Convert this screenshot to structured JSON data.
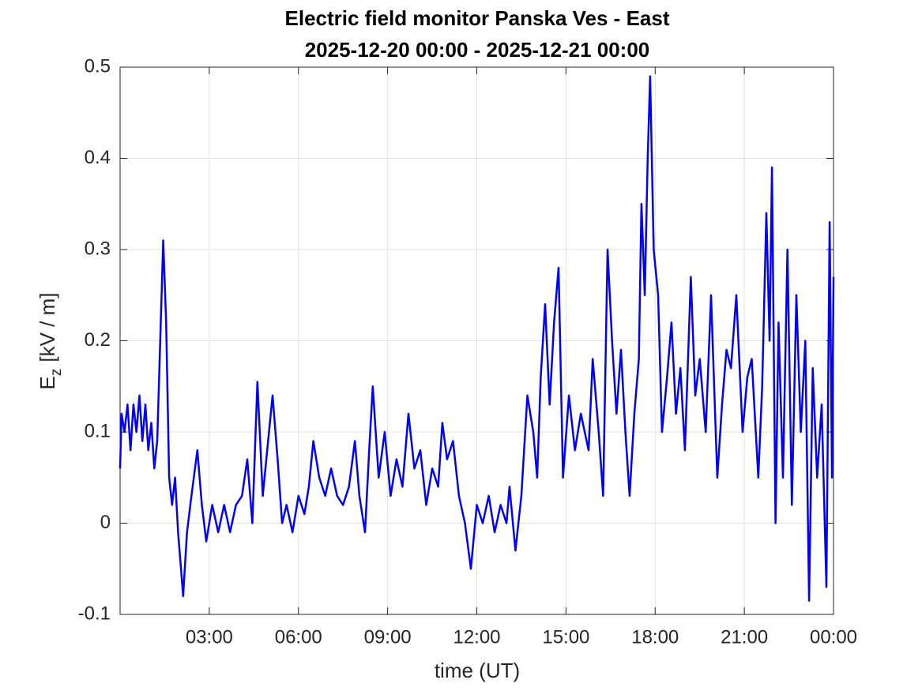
{
  "chart_data": {
    "type": "line",
    "title": "Electric field monitor Panska Ves - East",
    "subtitle": "2025-12-20 00:00 - 2025-12-21 00:00",
    "xlabel": "time (UT)",
    "ylabel_symbol": "E",
    "ylabel_subscript": "z",
    "ylabel_unit": "[kV / m]",
    "xlim": [
      0,
      24
    ],
    "ylim": [
      -0.1,
      0.5
    ],
    "xticks": [
      {
        "value": 3,
        "label": "03:00"
      },
      {
        "value": 6,
        "label": "06:00"
      },
      {
        "value": 9,
        "label": "09:00"
      },
      {
        "value": 12,
        "label": "12:00"
      },
      {
        "value": 15,
        "label": "15:00"
      },
      {
        "value": 18,
        "label": "18:00"
      },
      {
        "value": 21,
        "label": "21:00"
      },
      {
        "value": 24,
        "label": "00:00"
      }
    ],
    "yticks": [
      -0.1,
      0,
      0.1,
      0.2,
      0.3,
      0.4,
      0.5
    ],
    "grid": true,
    "series": [
      {
        "name": "Ez",
        "color": "#0000ff",
        "x": [
          0,
          0.05,
          0.15,
          0.25,
          0.35,
          0.45,
          0.55,
          0.65,
          0.75,
          0.85,
          0.95,
          1.05,
          1.15,
          1.25,
          1.35,
          1.45,
          1.55,
          1.65,
          1.75,
          1.85,
          1.95,
          2.05,
          2.12,
          2.25,
          2.4,
          2.6,
          2.75,
          2.9,
          3.1,
          3.3,
          3.5,
          3.7,
          3.9,
          4.1,
          4.28,
          4.45,
          4.62,
          4.8,
          4.95,
          5.13,
          5.3,
          5.45,
          5.6,
          5.8,
          6.0,
          6.2,
          6.35,
          6.5,
          6.7,
          6.9,
          7.1,
          7.3,
          7.5,
          7.7,
          7.9,
          8.05,
          8.24,
          8.38,
          8.5,
          8.7,
          8.9,
          9.1,
          9.3,
          9.5,
          9.7,
          9.9,
          10.1,
          10.3,
          10.5,
          10.7,
          10.84,
          11.0,
          11.2,
          11.4,
          11.6,
          11.8,
          12.0,
          12.2,
          12.4,
          12.6,
          12.8,
          13.0,
          13.1,
          13.3,
          13.5,
          13.7,
          13.9,
          14.03,
          14.15,
          14.3,
          14.45,
          14.6,
          14.75,
          14.9,
          15.1,
          15.3,
          15.5,
          15.76,
          15.9,
          16.1,
          16.25,
          16.4,
          16.55,
          16.7,
          16.85,
          17.0,
          17.14,
          17.3,
          17.45,
          17.54,
          17.65,
          17.75,
          17.83,
          17.95,
          18.1,
          18.23,
          18.4,
          18.55,
          18.7,
          18.85,
          19.0,
          19.2,
          19.35,
          19.5,
          19.7,
          19.88,
          20.09,
          20.25,
          20.4,
          20.55,
          20.73,
          20.94,
          21.1,
          21.25,
          21.47,
          21.6,
          21.74,
          21.85,
          21.93,
          22.05,
          22.15,
          22.3,
          22.45,
          22.6,
          22.75,
          22.9,
          23.05,
          23.18,
          23.3,
          23.45,
          23.6,
          23.76,
          23.87,
          23.95,
          24.0
        ],
        "values": [
          0.06,
          0.12,
          0.1,
          0.13,
          0.08,
          0.13,
          0.1,
          0.14,
          0.09,
          0.13,
          0.08,
          0.11,
          0.06,
          0.09,
          0.2,
          0.31,
          0.22,
          0.05,
          0.02,
          0.05,
          -0.01,
          -0.05,
          -0.08,
          -0.01,
          0.03,
          0.08,
          0.02,
          -0.02,
          0.02,
          -0.01,
          0.02,
          -0.01,
          0.02,
          0.03,
          0.07,
          0.0,
          0.155,
          0.03,
          0.08,
          0.14,
          0.07,
          0.0,
          0.02,
          -0.01,
          0.03,
          0.01,
          0.04,
          0.09,
          0.05,
          0.03,
          0.06,
          0.03,
          0.02,
          0.04,
          0.09,
          0.03,
          -0.01,
          0.08,
          0.15,
          0.05,
          0.1,
          0.03,
          0.07,
          0.04,
          0.12,
          0.06,
          0.08,
          0.02,
          0.06,
          0.04,
          0.11,
          0.07,
          0.09,
          0.03,
          0.0,
          -0.05,
          0.02,
          0.0,
          0.03,
          -0.01,
          0.02,
          0.0,
          0.04,
          -0.03,
          0.03,
          0.14,
          0.1,
          0.05,
          0.16,
          0.24,
          0.13,
          0.22,
          0.28,
          0.05,
          0.14,
          0.08,
          0.12,
          0.08,
          0.18,
          0.1,
          0.03,
          0.3,
          0.2,
          0.12,
          0.19,
          0.1,
          0.03,
          0.12,
          0.18,
          0.35,
          0.25,
          0.4,
          0.49,
          0.3,
          0.25,
          0.1,
          0.16,
          0.22,
          0.12,
          0.17,
          0.08,
          0.27,
          0.14,
          0.18,
          0.1,
          0.25,
          0.05,
          0.13,
          0.19,
          0.17,
          0.25,
          0.1,
          0.16,
          0.18,
          0.05,
          0.15,
          0.34,
          0.2,
          0.39,
          0.0,
          0.22,
          0.05,
          0.3,
          0.02,
          0.25,
          0.1,
          0.2,
          -0.085,
          0.17,
          0.05,
          0.13,
          -0.07,
          0.33,
          0.05,
          0.27
        ]
      }
    ]
  }
}
